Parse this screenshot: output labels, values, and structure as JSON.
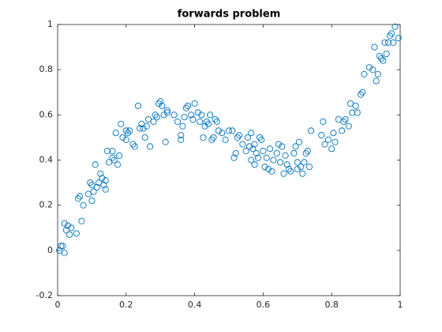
{
  "chart_data": {
    "type": "scatter",
    "title": "forwards problem",
    "color": "#0072bd",
    "x": [
      0.005,
      0.01,
      0.015,
      0.02,
      0.02,
      0.025,
      0.03,
      0.035,
      0.04,
      0.055,
      0.06,
      0.065,
      0.07,
      0.075,
      0.09,
      0.095,
      0.1,
      0.1,
      0.105,
      0.11,
      0.115,
      0.12,
      0.125,
      0.13,
      0.135,
      0.14,
      0.14,
      0.145,
      0.15,
      0.16,
      0.16,
      0.165,
      0.17,
      0.175,
      0.18,
      0.185,
      0.19,
      0.2,
      0.2,
      0.205,
      0.21,
      0.22,
      0.225,
      0.235,
      0.24,
      0.245,
      0.25,
      0.255,
      0.26,
      0.265,
      0.27,
      0.28,
      0.285,
      0.29,
      0.295,
      0.3,
      0.305,
      0.31,
      0.315,
      0.32,
      0.32,
      0.34,
      0.35,
      0.36,
      0.36,
      0.365,
      0.37,
      0.375,
      0.38,
      0.39,
      0.395,
      0.4,
      0.41,
      0.415,
      0.42,
      0.425,
      0.43,
      0.435,
      0.44,
      0.445,
      0.45,
      0.455,
      0.46,
      0.465,
      0.47,
      0.48,
      0.49,
      0.5,
      0.51,
      0.515,
      0.52,
      0.525,
      0.53,
      0.54,
      0.55,
      0.555,
      0.56,
      0.565,
      0.565,
      0.57,
      0.575,
      0.575,
      0.58,
      0.585,
      0.59,
      0.595,
      0.6,
      0.605,
      0.61,
      0.615,
      0.62,
      0.625,
      0.63,
      0.64,
      0.645,
      0.65,
      0.655,
      0.66,
      0.665,
      0.67,
      0.675,
      0.68,
      0.69,
      0.695,
      0.7,
      0.7,
      0.705,
      0.71,
      0.715,
      0.72,
      0.725,
      0.73,
      0.735,
      0.74,
      0.77,
      0.775,
      0.78,
      0.79,
      0.8,
      0.805,
      0.81,
      0.82,
      0.83,
      0.835,
      0.84,
      0.85,
      0.855,
      0.86,
      0.87,
      0.875,
      0.885,
      0.89,
      0.895,
      0.91,
      0.92,
      0.925,
      0.93,
      0.935,
      0.94,
      0.945,
      0.95,
      0.955,
      0.96,
      0.965,
      0.97,
      0.975,
      0.98,
      0.985,
      0.995
    ],
    "values": [
      0.0,
      0.02,
      0.02,
      -0.01,
      0.12,
      0.09,
      0.11,
      0.07,
      0.1,
      0.075,
      0.23,
      0.24,
      0.13,
      0.2,
      0.25,
      0.3,
      0.29,
      0.22,
      0.26,
      0.38,
      0.28,
      0.3,
      0.34,
      0.32,
      0.29,
      0.31,
      0.27,
      0.44,
      0.39,
      0.41,
      0.44,
      0.4,
      0.52,
      0.38,
      0.42,
      0.56,
      0.5,
      0.49,
      0.53,
      0.52,
      0.53,
      0.47,
      0.46,
      0.64,
      0.54,
      0.56,
      0.54,
      0.5,
      0.55,
      0.58,
      0.46,
      0.57,
      0.6,
      0.59,
      0.65,
      0.66,
      0.64,
      0.6,
      0.48,
      0.61,
      0.62,
      0.6,
      0.57,
      0.49,
      0.51,
      0.55,
      0.59,
      0.63,
      0.64,
      0.6,
      0.58,
      0.65,
      0.61,
      0.57,
      0.6,
      0.5,
      0.55,
      0.57,
      0.56,
      0.6,
      0.49,
      0.5,
      0.58,
      0.57,
      0.53,
      0.52,
      0.49,
      0.53,
      0.53,
      0.41,
      0.43,
      0.5,
      0.51,
      0.47,
      0.44,
      0.5,
      0.46,
      0.52,
      0.4,
      0.45,
      0.47,
      0.38,
      0.43,
      0.41,
      0.5,
      0.49,
      0.44,
      0.37,
      0.41,
      0.36,
      0.45,
      0.35,
      0.4,
      0.43,
      0.47,
      0.39,
      0.46,
      0.34,
      0.42,
      0.38,
      0.36,
      0.35,
      0.43,
      0.46,
      0.39,
      0.36,
      0.48,
      0.37,
      0.34,
      0.39,
      0.43,
      0.44,
      0.37,
      0.53,
      0.51,
      0.57,
      0.47,
      0.49,
      0.45,
      0.52,
      0.48,
      0.58,
      0.53,
      0.57,
      0.58,
      0.55,
      0.65,
      0.61,
      0.64,
      0.61,
      0.69,
      0.7,
      0.78,
      0.81,
      0.8,
      0.9,
      0.75,
      0.78,
      0.86,
      0.85,
      0.84,
      0.92,
      0.87,
      0.92,
      0.95,
      0.96,
      0.92,
      0.99,
      0.94
    ],
    "xlim": [
      0,
      1
    ],
    "xticks": [
      0,
      0.2,
      0.4,
      0.6,
      0.8,
      1
    ],
    "ylim": [
      -0.2,
      1
    ],
    "yticks": [
      -0.2,
      0,
      0.2,
      0.4,
      0.6,
      0.8,
      1
    ]
  }
}
